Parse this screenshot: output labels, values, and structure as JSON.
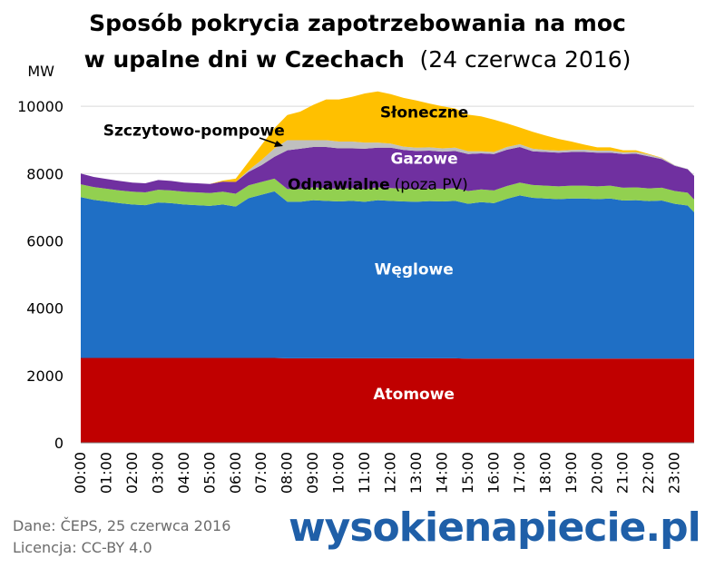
{
  "chart_data": {
    "type": "area",
    "stacked": true,
    "title_line1": "Sposób pokrycia zapotrzebowania na moc",
    "title_line2_bold": "w upalne dni w Czechach",
    "title_line2_light": "(24 czerwca 2016)",
    "ylabel": "MW",
    "ylim": [
      0,
      11000
    ],
    "yticks": [
      0,
      2000,
      4000,
      6000,
      8000,
      10000
    ],
    "xlim": [
      0,
      23.75
    ],
    "xticks": [
      "00:00",
      "01:00",
      "02:00",
      "03:00",
      "04:00",
      "05:00",
      "06:00",
      "07:00",
      "08:00",
      "09:00",
      "10:00",
      "11:00",
      "12:00",
      "13:00",
      "14:00",
      "15:00",
      "16:00",
      "17:00",
      "18:00",
      "19:00",
      "20:00",
      "21:00",
      "22:00",
      "23:00"
    ],
    "x": [
      0,
      0.5,
      1,
      1.5,
      2,
      2.5,
      3,
      3.5,
      4,
      4.5,
      5,
      5.5,
      6,
      6.5,
      7,
      7.5,
      8,
      8.5,
      9,
      9.5,
      10,
      10.5,
      11,
      11.5,
      12,
      12.5,
      13,
      13.5,
      14,
      14.5,
      15,
      15.5,
      16,
      16.5,
      17,
      17.5,
      18,
      18.5,
      19,
      19.5,
      20,
      20.5,
      21,
      21.5,
      22,
      22.5,
      23,
      23.5,
      23.75
    ],
    "series": [
      {
        "name": "Atomowe",
        "color": "#c00000",
        "values": [
          2520,
          2520,
          2520,
          2520,
          2520,
          2520,
          2520,
          2520,
          2520,
          2520,
          2520,
          2520,
          2520,
          2520,
          2520,
          2520,
          2510,
          2510,
          2510,
          2510,
          2510,
          2510,
          2510,
          2510,
          2510,
          2510,
          2510,
          2510,
          2510,
          2510,
          2500,
          2500,
          2500,
          2500,
          2500,
          2500,
          2500,
          2500,
          2500,
          2500,
          2500,
          2500,
          2500,
          2500,
          2500,
          2500,
          2500,
          2500,
          2500
        ]
      },
      {
        "name": "Węglowe",
        "color": "#1f6fc5",
        "values": [
          4780,
          4700,
          4650,
          4600,
          4560,
          4540,
          4620,
          4600,
          4560,
          4540,
          4520,
          4560,
          4500,
          4750,
          4850,
          4950,
          4650,
          4650,
          4700,
          4680,
          4660,
          4680,
          4650,
          4700,
          4680,
          4660,
          4650,
          4670,
          4660,
          4680,
          4600,
          4650,
          4620,
          4750,
          4850,
          4780,
          4760,
          4740,
          4760,
          4760,
          4740,
          4760,
          4700,
          4710,
          4680,
          4700,
          4600,
          4550,
          4350
        ]
      },
      {
        "name": "Odnawialne",
        "note": "(poza PV)",
        "color": "#92d050",
        "values": [
          380,
          380,
          380,
          380,
          380,
          380,
          380,
          380,
          380,
          380,
          380,
          380,
          380,
          380,
          380,
          380,
          380,
          380,
          380,
          380,
          380,
          380,
          380,
          380,
          380,
          380,
          380,
          380,
          380,
          380,
          380,
          380,
          380,
          380,
          380,
          380,
          380,
          380,
          380,
          380,
          380,
          380,
          380,
          380,
          380,
          380,
          380,
          380,
          380
        ]
      },
      {
        "name": "Gazowe",
        "color": "#7030a0",
        "values": [
          320,
          300,
          290,
          280,
          270,
          270,
          290,
          280,
          270,
          270,
          270,
          300,
          350,
          400,
          500,
          650,
          1150,
          1200,
          1200,
          1220,
          1200,
          1180,
          1200,
          1180,
          1200,
          1150,
          1130,
          1120,
          1100,
          1100,
          1100,
          1070,
          1080,
          1080,
          1060,
          1000,
          1000,
          1000,
          1000,
          1000,
          1000,
          980,
          1000,
          1000,
          950,
          850,
          750,
          700,
          700
        ]
      },
      {
        "name": "Szczytowo-pompowe",
        "color": "#bfbfbf",
        "values": [
          0,
          0,
          0,
          0,
          0,
          0,
          0,
          0,
          0,
          0,
          0,
          0,
          0,
          50,
          150,
          250,
          300,
          250,
          200,
          200,
          200,
          200,
          180,
          150,
          120,
          100,
          100,
          100,
          100,
          100,
          80,
          60,
          60,
          80,
          80,
          80,
          60,
          60,
          60,
          70,
          60,
          60,
          50,
          50,
          50,
          30,
          20,
          10,
          10
        ]
      },
      {
        "name": "Słoneczne",
        "color": "#ffc000",
        "values": [
          0,
          0,
          0,
          0,
          0,
          0,
          0,
          0,
          0,
          0,
          0,
          30,
          100,
          250,
          450,
          600,
          750,
          850,
          1050,
          1210,
          1250,
          1330,
          1460,
          1520,
          1470,
          1450,
          1400,
          1300,
          1250,
          1160,
          1090,
          1040,
          960,
          700,
          500,
          500,
          430,
          350,
          250,
          150,
          100,
          100,
          60,
          50,
          20,
          10,
          0,
          0,
          0
        ]
      }
    ]
  },
  "footer": {
    "source_line1": "Dane: ČEPS, 25 czerwca 2016",
    "source_line2": "Licencja: CC-BY 4.0",
    "logo_text": "wysokienapiecie.pl"
  }
}
